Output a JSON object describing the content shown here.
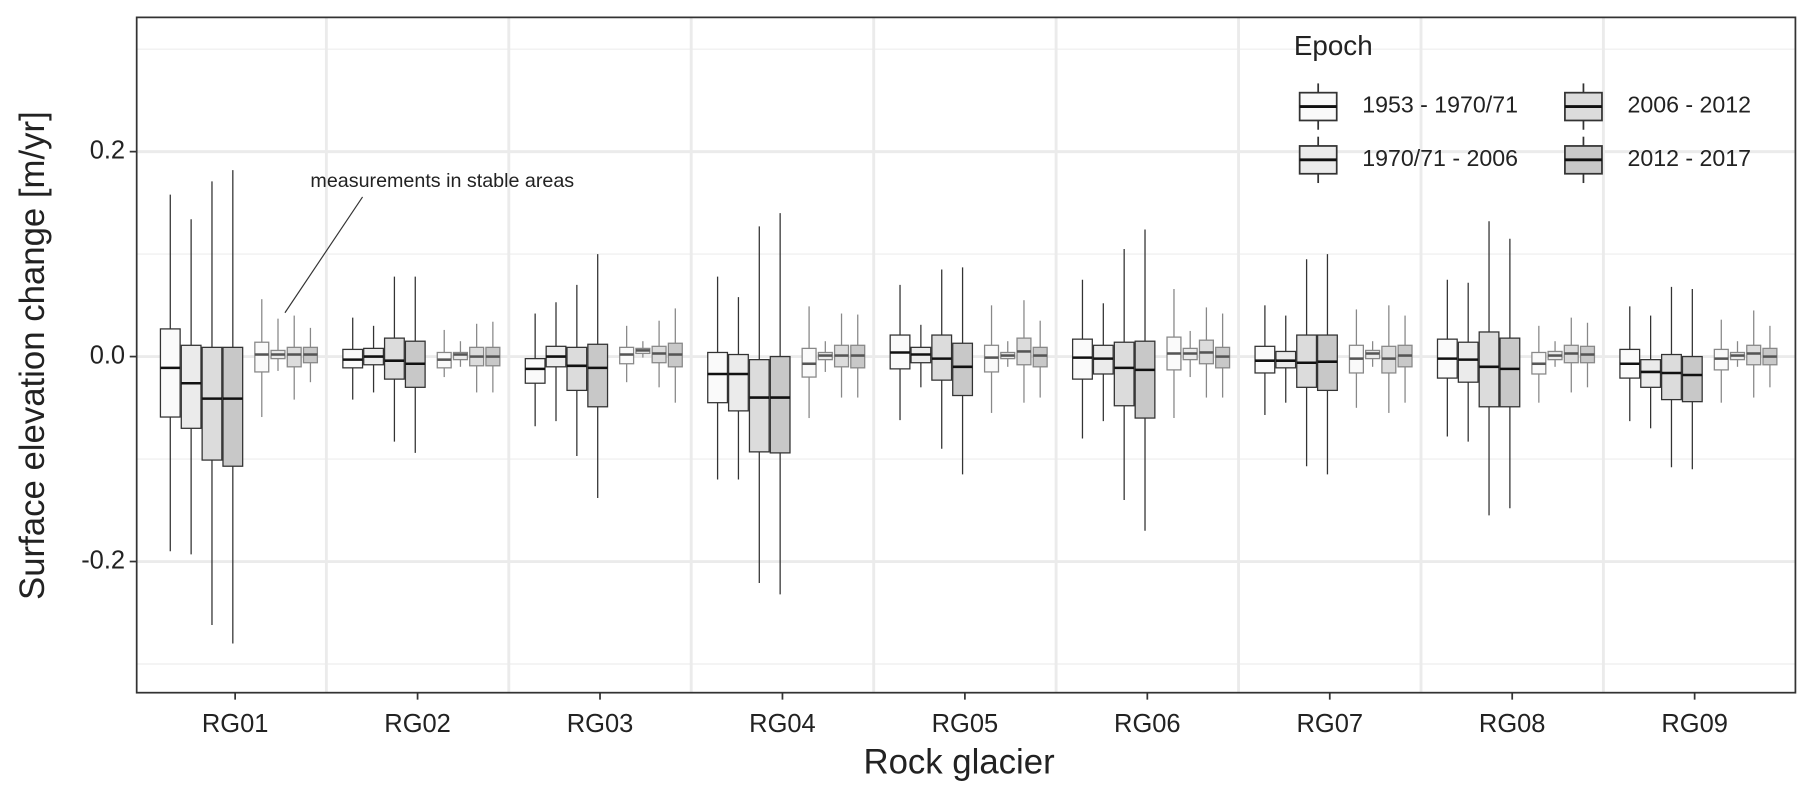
{
  "chart_data": {
    "type": "box",
    "x_label": "Rock glacier",
    "y_label": "Surface elevation change [m/yr]",
    "annotation": "measurements in stable areas",
    "legend_title": "Epoch",
    "legend_position": "top-right",
    "grid": true,
    "categories": [
      "RG01",
      "RG02",
      "RG03",
      "RG04",
      "RG05",
      "RG06",
      "RG07",
      "RG08",
      "RG09"
    ],
    "ylim": [
      -0.328,
      0.331
    ],
    "yticks": [
      {
        "value": -0.2,
        "label": "-0.2"
      },
      {
        "value": 0,
        "label": "0.0"
      },
      {
        "value": 0.2,
        "label": "0.2"
      }
    ],
    "minor_yticks": [
      -0.3,
      -0.1,
      0.1,
      0.3
    ],
    "series": [
      {
        "name": "1953 - 1970/71",
        "color": "#fafafa",
        "values": [
          [
            -0.19,
            -0.059,
            -0.011,
            0.027,
            0.158
          ],
          [
            -0.042,
            -0.011,
            -0.003,
            0.007,
            0.038
          ],
          [
            -0.068,
            -0.026,
            -0.012,
            -0.002,
            0.042
          ],
          [
            -0.12,
            -0.045,
            -0.017,
            0.004,
            0.078
          ],
          [
            -0.062,
            -0.012,
            0.004,
            0.021,
            0.07
          ],
          [
            -0.08,
            -0.022,
            -0.001,
            0.017,
            0.075
          ],
          [
            -0.057,
            -0.016,
            -0.004,
            0.01,
            0.05
          ],
          [
            -0.078,
            -0.021,
            -0.002,
            0.017,
            0.075
          ],
          [
            -0.063,
            -0.021,
            -0.007,
            0.007,
            0.049
          ]
        ],
        "stable_values": [
          [
            -0.059,
            -0.015,
            0.002,
            0.014,
            0.056
          ],
          [
            -0.02,
            -0.011,
            -0.003,
            0.004,
            0.026
          ],
          [
            -0.025,
            -0.007,
            0.002,
            0.009,
            0.03
          ],
          [
            -0.06,
            -0.02,
            -0.007,
            0.008,
            0.049
          ],
          [
            -0.055,
            -0.015,
            -0.001,
            0.011,
            0.05
          ],
          [
            -0.06,
            -0.013,
            0.003,
            0.019,
            0.066
          ],
          [
            -0.05,
            -0.016,
            -0.002,
            0.011,
            0.046
          ],
          [
            -0.045,
            -0.017,
            -0.007,
            0.004,
            0.03
          ],
          [
            -0.045,
            -0.013,
            -0.002,
            0.007,
            0.036
          ]
        ]
      },
      {
        "name": "1970/71 - 2006",
        "color": "#ebebeb",
        "values": [
          [
            -0.193,
            -0.07,
            -0.026,
            0.011,
            0.134
          ],
          [
            -0.035,
            -0.008,
            0,
            0.008,
            0.03
          ],
          [
            -0.063,
            -0.01,
            0,
            0.01,
            0.053
          ],
          [
            -0.12,
            -0.053,
            -0.017,
            0.002,
            0.058
          ],
          [
            -0.03,
            -0.006,
            0.002,
            0.009,
            0.031
          ],
          [
            -0.063,
            -0.017,
            -0.002,
            0.011,
            0.052
          ],
          [
            -0.045,
            -0.011,
            -0.004,
            0.005,
            0.04
          ],
          [
            -0.083,
            -0.025,
            -0.003,
            0.014,
            0.072
          ],
          [
            -0.07,
            -0.03,
            -0.015,
            -0.003,
            0.04
          ]
        ],
        "stable_values": [
          [
            -0.014,
            -0.002,
            0.002,
            0.006,
            0.037
          ],
          [
            -0.01,
            -0.003,
            0.002,
            0.004,
            0.015
          ],
          [
            -0.001,
            0.003,
            0.006,
            0.008,
            0.015
          ],
          [
            -0.015,
            -0.003,
            0.001,
            0.004,
            0.015
          ],
          [
            -0.01,
            -0.002,
            0.001,
            0.004,
            0.015
          ],
          [
            -0.02,
            -0.003,
            0.003,
            0.008,
            0.025
          ],
          [
            -0.01,
            -0.002,
            0.003,
            0.006,
            0.015
          ],
          [
            -0.01,
            -0.003,
            0.001,
            0.005,
            0.015
          ],
          [
            -0.01,
            -0.003,
            0.001,
            0.004,
            0.015
          ]
        ]
      },
      {
        "name": "2006 - 2012",
        "color": "#dcdcdc",
        "values": [
          [
            -0.262,
            -0.101,
            -0.041,
            0.009,
            0.171
          ],
          [
            -0.083,
            -0.022,
            -0.004,
            0.018,
            0.078
          ],
          [
            -0.097,
            -0.033,
            -0.009,
            0.009,
            0.07
          ],
          [
            -0.221,
            -0.093,
            -0.04,
            -0.003,
            0.127
          ],
          [
            -0.09,
            -0.023,
            -0.002,
            0.021,
            0.085
          ],
          [
            -0.14,
            -0.048,
            -0.011,
            0.014,
            0.105
          ],
          [
            -0.107,
            -0.03,
            -0.006,
            0.021,
            0.095
          ],
          [
            -0.155,
            -0.049,
            -0.01,
            0.024,
            0.132
          ],
          [
            -0.108,
            -0.042,
            -0.016,
            0.002,
            0.068
          ]
        ],
        "stable_values": [
          [
            -0.042,
            -0.01,
            0.002,
            0.009,
            0.04
          ],
          [
            -0.035,
            -0.009,
            0,
            0.009,
            0.032
          ],
          [
            -0.03,
            -0.006,
            0.003,
            0.01,
            0.035
          ],
          [
            -0.04,
            -0.01,
            0.001,
            0.011,
            0.042
          ],
          [
            -0.045,
            -0.008,
            0.005,
            0.018,
            0.055
          ],
          [
            -0.04,
            -0.007,
            0.004,
            0.016,
            0.048
          ],
          [
            -0.055,
            -0.016,
            -0.002,
            0.01,
            0.05
          ],
          [
            -0.035,
            -0.006,
            0.003,
            0.011,
            0.038
          ],
          [
            -0.04,
            -0.008,
            0.003,
            0.011,
            0.045
          ]
        ]
      },
      {
        "name": "2012 - 2017",
        "color": "#c8c8c8",
        "values": [
          [
            -0.28,
            -0.107,
            -0.041,
            0.009,
            0.182
          ],
          [
            -0.094,
            -0.03,
            -0.007,
            0.015,
            0.078
          ],
          [
            -0.138,
            -0.049,
            -0.011,
            0.012,
            0.1
          ],
          [
            -0.232,
            -0.094,
            -0.04,
            0,
            0.14
          ],
          [
            -0.115,
            -0.038,
            -0.01,
            0.013,
            0.087
          ],
          [
            -0.17,
            -0.06,
            -0.013,
            0.015,
            0.124
          ],
          [
            -0.115,
            -0.033,
            -0.005,
            0.021,
            0.1
          ],
          [
            -0.148,
            -0.049,
            -0.012,
            0.018,
            0.115
          ],
          [
            -0.11,
            -0.044,
            -0.018,
            0,
            0.066
          ]
        ],
        "stable_values": [
          [
            -0.025,
            -0.006,
            0.002,
            0.009,
            0.028
          ],
          [
            -0.035,
            -0.009,
            0,
            0.009,
            0.034
          ],
          [
            -0.045,
            -0.01,
            0.002,
            0.013,
            0.047
          ],
          [
            -0.04,
            -0.011,
            0.001,
            0.011,
            0.041
          ],
          [
            -0.04,
            -0.01,
            0.001,
            0.009,
            0.035
          ],
          [
            -0.04,
            -0.011,
            0,
            0.009,
            0.042
          ],
          [
            -0.045,
            -0.01,
            0.001,
            0.011,
            0.04
          ],
          [
            -0.03,
            -0.006,
            0.002,
            0.01,
            0.033
          ],
          [
            -0.03,
            -0.008,
            0,
            0.008,
            0.03
          ]
        ]
      }
    ]
  }
}
